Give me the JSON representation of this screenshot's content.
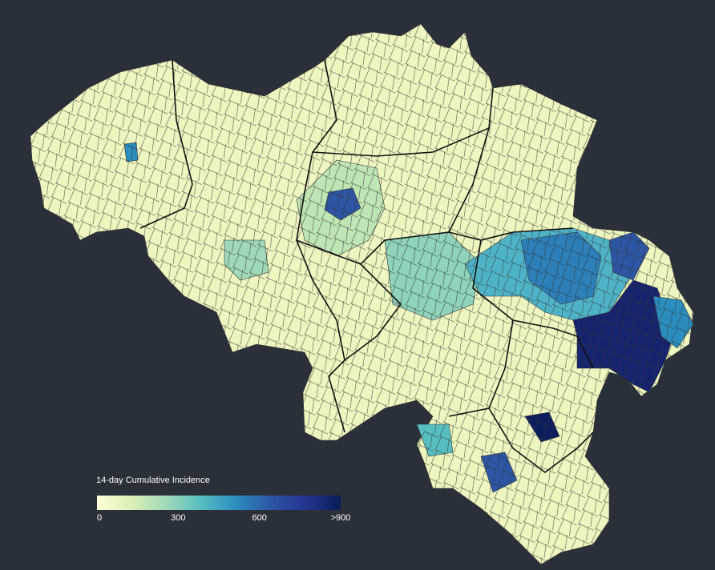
{
  "legend": {
    "title": "14-day Cumulative Incidence",
    "range": [
      0,
      900
    ],
    "ticks": [
      0,
      300,
      600,
      {
        "value": 900,
        "label": ">900"
      }
    ],
    "colors": [
      "#ffffd9",
      "#d9f0b3",
      "#9fd9b8",
      "#56bec1",
      "#2b8cbe",
      "#2c56a4",
      "#25348f",
      "#081d58"
    ]
  }
}
